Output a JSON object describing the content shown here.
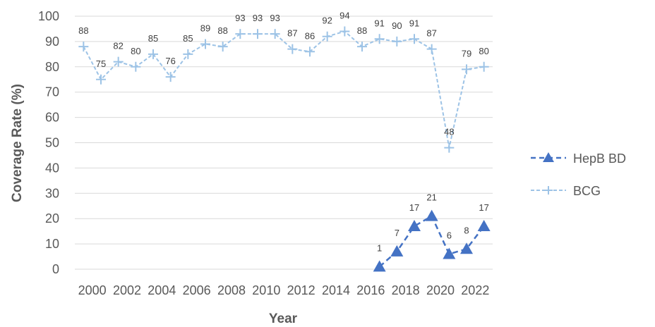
{
  "chart_data": {
    "type": "line",
    "xlabel": "Year",
    "ylabel": "Coverage Rate (%)",
    "ylim": [
      0,
      100
    ],
    "yticks": [
      0,
      10,
      20,
      30,
      40,
      50,
      60,
      70,
      80,
      90,
      100
    ],
    "x": [
      2000,
      2001,
      2002,
      2003,
      2004,
      2005,
      2006,
      2007,
      2008,
      2009,
      2010,
      2011,
      2012,
      2013,
      2014,
      2015,
      2016,
      2017,
      2018,
      2019,
      2020,
      2021,
      2022,
      2023
    ],
    "xtick_labels": [
      "2000",
      "2002",
      "2004",
      "2006",
      "2008",
      "2010",
      "2012",
      "2014",
      "2016",
      "2018",
      "2020",
      "2022"
    ],
    "xtick_values": [
      2000,
      2002,
      2004,
      2006,
      2008,
      2010,
      2012,
      2014,
      2016,
      2018,
      2020,
      2022
    ],
    "grid": "horizontal",
    "legend_position": "right",
    "series": [
      {
        "name": "HepB BD",
        "marker": "triangle",
        "color": "#4472C4",
        "x": [
          2017,
          2018,
          2019,
          2020,
          2021,
          2022,
          2023
        ],
        "values": [
          1,
          7,
          17,
          21,
          6,
          8,
          17
        ]
      },
      {
        "name": "BCG",
        "marker": "plus",
        "color": "#9DC3E6",
        "x": [
          2000,
          2001,
          2002,
          2003,
          2004,
          2005,
          2006,
          2007,
          2008,
          2009,
          2010,
          2011,
          2012,
          2013,
          2014,
          2015,
          2016,
          2017,
          2018,
          2019,
          2020,
          2021,
          2022,
          2023
        ],
        "values": [
          88,
          75,
          82,
          80,
          85,
          76,
          85,
          89,
          88,
          93,
          93,
          93,
          87,
          86,
          92,
          94,
          88,
          91,
          90,
          91,
          87,
          48,
          79,
          80
        ]
      }
    ]
  }
}
